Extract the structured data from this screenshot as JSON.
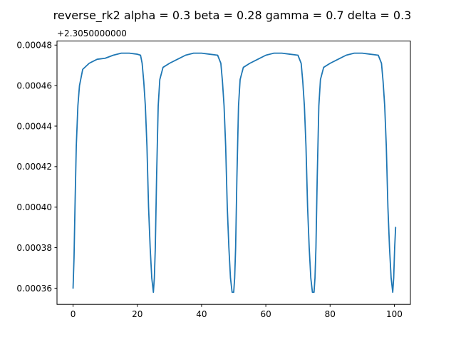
{
  "chart_data": {
    "type": "line",
    "title": "reverse_rk2 alpha = 0.3 beta = 0.28 gamma = 0.7 delta = 0.3",
    "xlabel": "",
    "ylabel": "",
    "y_offset_label": "+2.3050000000",
    "xlim": [
      -5,
      105
    ],
    "ylim": [
      0.000352,
      0.000482
    ],
    "x_ticks": [
      0,
      20,
      40,
      60,
      80,
      100
    ],
    "x_tick_labels": [
      "0",
      "20",
      "40",
      "60",
      "80",
      "100"
    ],
    "y_ticks": [
      0.00036,
      0.00038,
      0.0004,
      0.00042,
      0.00044,
      0.00046,
      0.00048
    ],
    "y_tick_labels": [
      "0.00036",
      "0.00038",
      "0.00040",
      "0.00042",
      "0.00044",
      "0.00046",
      "0.00048"
    ],
    "grid": false,
    "series": [
      {
        "color": "#1f77b4",
        "x": [
          0,
          0.3,
          0.6,
          1.0,
          1.5,
          2.0,
          3.0,
          5.0,
          7.5,
          10.0,
          12.5,
          15.0,
          17.5,
          20.0,
          21.0,
          21.5,
          22.0,
          22.5,
          23.0,
          23.5,
          24.0,
          24.5,
          25.0,
          25.3,
          25.6,
          26.0,
          26.5,
          27.0,
          28.0,
          30.0,
          32.5,
          35.0,
          37.5,
          40.0,
          42.5,
          45.0,
          46.0,
          46.5,
          47.0,
          47.5,
          48.0,
          48.5,
          49.0,
          49.5,
          50.0,
          50.3,
          50.6,
          51.0,
          51.5,
          52.0,
          53.0,
          55.0,
          57.5,
          60.0,
          62.5,
          65.0,
          67.5,
          70.0,
          71.0,
          71.5,
          72.0,
          72.5,
          73.0,
          73.5,
          74.0,
          74.5,
          75.0,
          75.3,
          75.6,
          76.0,
          76.5,
          77.0,
          78.0,
          80.0,
          82.5,
          85.0,
          87.5,
          90.0,
          92.5,
          95.0,
          96.0,
          96.5,
          97.0,
          97.5,
          98.0,
          98.5,
          99.0,
          99.5,
          99.8,
          100.1,
          100.4
        ],
        "y": [
          0.00036,
          0.000375,
          0.0004,
          0.00043,
          0.00045,
          0.00046,
          0.000468,
          0.000471,
          0.000473,
          0.0004735,
          0.000475,
          0.000476,
          0.000476,
          0.0004755,
          0.000475,
          0.000471,
          0.000462,
          0.00045,
          0.00043,
          0.0004,
          0.00038,
          0.000365,
          0.000358,
          0.000365,
          0.00038,
          0.000415,
          0.00045,
          0.000463,
          0.000469,
          0.000471,
          0.000473,
          0.000475,
          0.000476,
          0.000476,
          0.0004755,
          0.000475,
          0.000471,
          0.000462,
          0.00045,
          0.00043,
          0.0004,
          0.00038,
          0.000365,
          0.000358,
          0.000358,
          0.000365,
          0.00038,
          0.000415,
          0.00045,
          0.000463,
          0.000469,
          0.000471,
          0.000473,
          0.000475,
          0.000476,
          0.000476,
          0.0004755,
          0.000475,
          0.000471,
          0.000462,
          0.00045,
          0.00043,
          0.0004,
          0.00038,
          0.000365,
          0.000358,
          0.000358,
          0.000365,
          0.00038,
          0.000415,
          0.00045,
          0.000463,
          0.000469,
          0.000471,
          0.000473,
          0.000475,
          0.000476,
          0.000476,
          0.0004755,
          0.000475,
          0.000471,
          0.000462,
          0.00045,
          0.00043,
          0.0004,
          0.00038,
          0.000365,
          0.000358,
          0.000365,
          0.00038,
          0.00039
        ]
      }
    ]
  }
}
